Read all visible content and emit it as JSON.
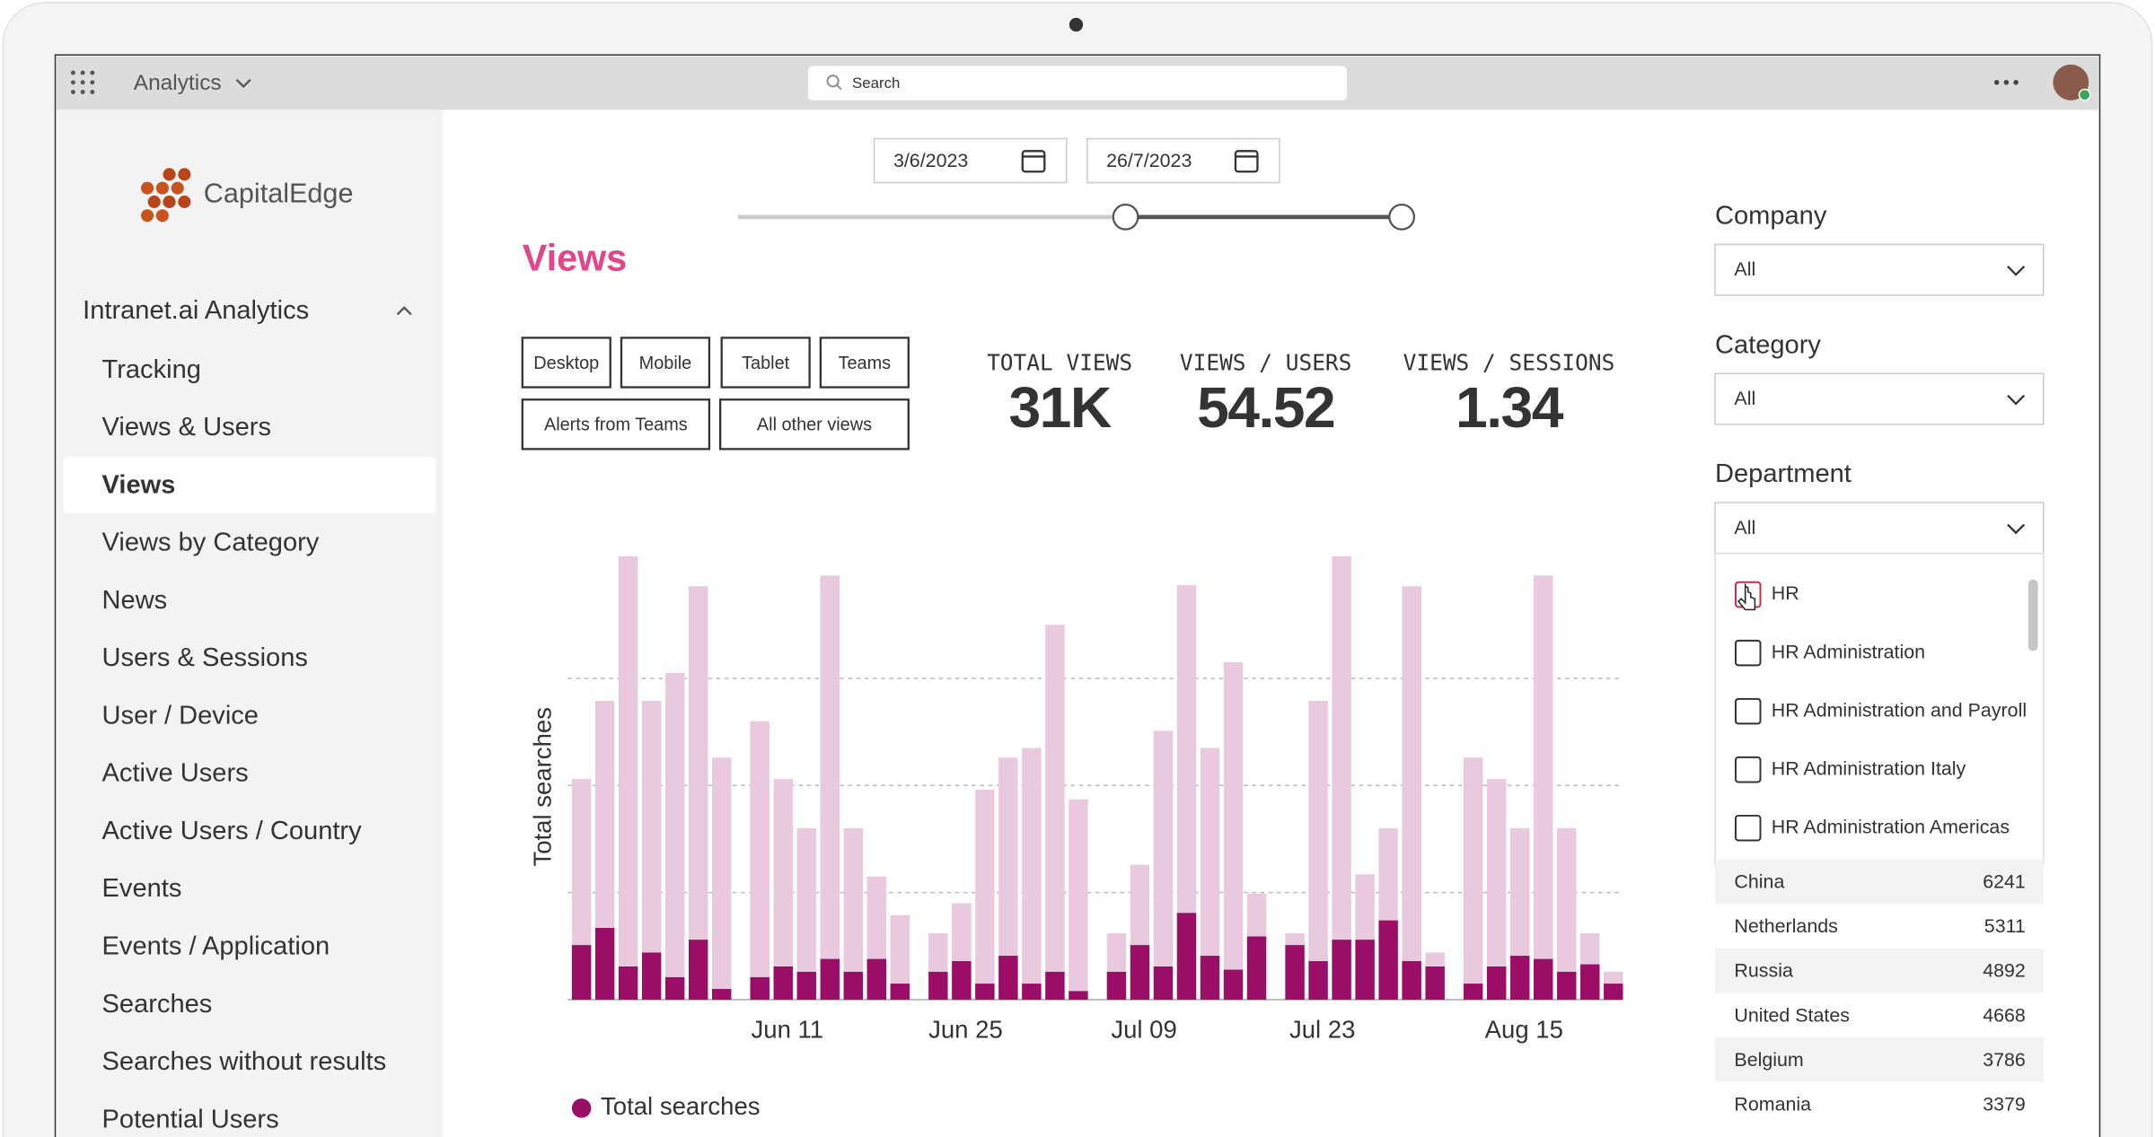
{
  "topbar": {
    "app": "Analytics",
    "search": "Search"
  },
  "sidebar": {
    "brand": "CapitalEdge",
    "section": "Intranet.ai Analytics",
    "active_item": 2,
    "items": [
      "Tracking",
      "Views & Users",
      "Views",
      "Views by Category",
      "News",
      "Users & Sessions",
      "User / Device",
      "Active Users",
      "Active Users / Country",
      "Events",
      "Events / Application",
      "Searches",
      "Searches without results",
      "Potential Users"
    ]
  },
  "dates": [
    "3/6/2023",
    "26/7/2023"
  ],
  "page_title": "Views",
  "device_filters": [
    "Desktop",
    "Mobile",
    "Tablet",
    "Teams",
    "Alerts from Teams",
    "All other views"
  ],
  "kpis": [
    {
      "label": "TOTAL VIEWS",
      "value": "31K"
    },
    {
      "label": "VIEWS / USERS",
      "value": "54.52"
    },
    {
      "label": "VIEWS / SESSIONS",
      "value": "1.34"
    }
  ],
  "filters": [
    {
      "label": "Company",
      "value": "All"
    },
    {
      "label": "Category",
      "value": "All"
    },
    {
      "label": "Department",
      "value": "All"
    }
  ],
  "department_options": [
    "HR",
    "HR Administration",
    "HR Administration and Payroll",
    "HR Administration Italy",
    "HR Administration Americas"
  ],
  "countries": [
    {
      "name": "China",
      "value": "6241"
    },
    {
      "name": "Netherlands",
      "value": "5311"
    },
    {
      "name": "Russia",
      "value": "4892"
    },
    {
      "name": "United States",
      "value": "4668"
    },
    {
      "name": "Belgium",
      "value": "3786"
    },
    {
      "name": "Romania",
      "value": "3379"
    }
  ],
  "chart_data": {
    "type": "bar",
    "y_label": "Total searches",
    "categories": [
      null,
      null,
      null,
      null,
      null,
      null,
      null,
      null,
      "Jun 11",
      null,
      null,
      null,
      null,
      null,
      null,
      "Jun 25",
      null,
      null,
      null,
      null,
      null,
      null,
      "Jul 09",
      null,
      null,
      null,
      null,
      null,
      null,
      "Jul 23",
      null,
      null,
      null,
      null,
      null,
      null,
      null,
      "Aug 15",
      null,
      null,
      null,
      null
    ],
    "series": [
      {
        "color": "#e9c9dd",
        "values": [
          206,
          279,
          414,
          279,
          305,
          386,
          226,
          260,
          206,
          160,
          396,
          160,
          115,
          79,
          62,
          90,
          196,
          226,
          235,
          350,
          187,
          62,
          126,
          251,
          387,
          235,
          315,
          99,
          62,
          279,
          414,
          117,
          160,
          386,
          44,
          226,
          206,
          160,
          396,
          160,
          62,
          26
        ]
      },
      {
        "name": "Total searches",
        "color": "#9b0e68",
        "values": [
          51,
          67,
          31,
          44,
          21,
          56,
          10,
          21,
          31,
          26,
          38,
          26,
          38,
          15,
          26,
          36,
          15,
          41,
          15,
          26,
          8,
          26,
          51,
          31,
          81,
          41,
          28,
          59,
          51,
          36,
          56,
          56,
          74,
          36,
          31,
          15,
          31,
          41,
          38,
          26,
          33,
          15
        ]
      }
    ],
    "ylim": [
      0,
      420
    ],
    "yticks": [
      0,
      100,
      200,
      300
    ],
    "grid": true,
    "legend": "bottom-left"
  }
}
